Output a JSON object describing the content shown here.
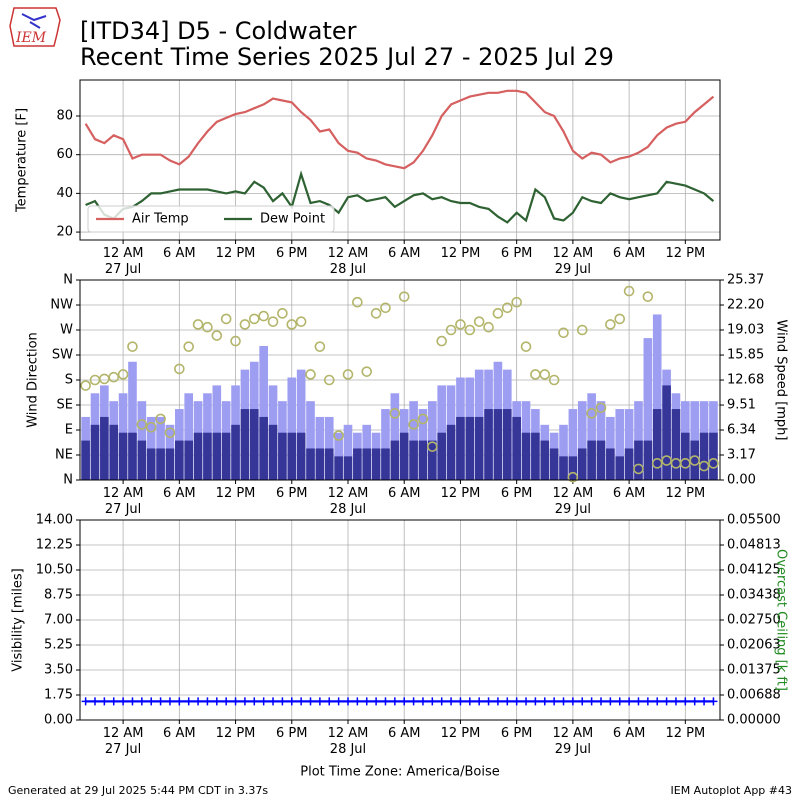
{
  "title": "[ITD34] D5 - Coldwater",
  "subtitle": "Recent Time Series 2025 Jul 27 - 2025 Jul 29",
  "logo_text": "IEM",
  "footer_left": "Generated at 29 Jul 2025 5:44 PM CDT in 3.37s",
  "footer_right": "IEM Autoplot App #43",
  "chart_data": [
    {
      "type": "line",
      "ylabel": "Temperature [F]",
      "grid": true,
      "legend": "lower left",
      "xlim": [
        "2025-07-26T19:24",
        "2025-07-29T15:42"
      ],
      "xticks": [
        {
          "value": "2025-07-27T00:00",
          "label": "12 AM\n27 Jul"
        },
        {
          "value": "2025-07-27T06:00",
          "label": "6 AM"
        },
        {
          "value": "2025-07-27T12:00",
          "label": "12 PM"
        },
        {
          "value": "2025-07-27T18:00",
          "label": "6 PM"
        },
        {
          "value": "2025-07-28T00:00",
          "label": "12 AM\n28 Jul"
        },
        {
          "value": "2025-07-28T06:00",
          "label": "6 AM"
        },
        {
          "value": "2025-07-28T12:00",
          "label": "12 PM"
        },
        {
          "value": "2025-07-28T18:00",
          "label": "6 PM"
        },
        {
          "value": "2025-07-29T00:00",
          "label": "12 AM\n29 Jul"
        },
        {
          "value": "2025-07-29T06:00",
          "label": "6 AM"
        },
        {
          "value": "2025-07-29T12:00",
          "label": "12 PM"
        }
      ],
      "ylim": [
        15.9,
        98.6
      ],
      "yticks": [
        20,
        40,
        60,
        80
      ],
      "x": [
        "2025-07-26T20:00",
        "2025-07-26T21:00",
        "2025-07-26T22:00",
        "2025-07-26T23:00",
        "2025-07-27T00:00",
        "2025-07-27T01:00",
        "2025-07-27T02:00",
        "2025-07-27T03:00",
        "2025-07-27T04:00",
        "2025-07-27T05:00",
        "2025-07-27T06:00",
        "2025-07-27T07:00",
        "2025-07-27T08:00",
        "2025-07-27T09:00",
        "2025-07-27T10:00",
        "2025-07-27T11:00",
        "2025-07-27T12:00",
        "2025-07-27T13:00",
        "2025-07-27T14:00",
        "2025-07-27T15:00",
        "2025-07-27T16:00",
        "2025-07-27T17:00",
        "2025-07-27T18:00",
        "2025-07-27T19:00",
        "2025-07-27T20:00",
        "2025-07-27T21:00",
        "2025-07-27T22:00",
        "2025-07-27T23:00",
        "2025-07-28T00:00",
        "2025-07-28T01:00",
        "2025-07-28T02:00",
        "2025-07-28T03:00",
        "2025-07-28T04:00",
        "2025-07-28T05:00",
        "2025-07-28T06:00",
        "2025-07-28T07:00",
        "2025-07-28T08:00",
        "2025-07-28T09:00",
        "2025-07-28T10:00",
        "2025-07-28T11:00",
        "2025-07-28T12:00",
        "2025-07-28T13:00",
        "2025-07-28T14:00",
        "2025-07-28T15:00",
        "2025-07-28T16:00",
        "2025-07-28T17:00",
        "2025-07-28T18:00",
        "2025-07-28T19:00",
        "2025-07-28T20:00",
        "2025-07-28T21:00",
        "2025-07-28T22:00",
        "2025-07-28T23:00",
        "2025-07-29T00:00",
        "2025-07-29T01:00",
        "2025-07-29T02:00",
        "2025-07-29T03:00",
        "2025-07-29T04:00",
        "2025-07-29T05:00",
        "2025-07-29T06:00",
        "2025-07-29T07:00",
        "2025-07-29T08:00",
        "2025-07-29T09:00",
        "2025-07-29T10:00",
        "2025-07-29T11:00",
        "2025-07-29T12:00",
        "2025-07-29T13:00",
        "2025-07-29T14:00",
        "2025-07-29T15:00"
      ],
      "series": [
        {
          "name": "Air Temp",
          "color": "#d65f5f",
          "values": [
            76,
            68,
            66,
            70,
            68,
            58,
            60,
            60,
            60,
            57,
            55,
            59,
            66,
            72,
            77,
            79,
            81,
            82,
            84,
            86,
            89,
            88,
            87,
            82,
            78,
            72,
            73,
            66,
            62,
            61,
            58,
            57,
            55,
            54,
            53,
            56,
            62,
            70,
            80,
            86,
            88,
            90,
            91,
            92,
            92,
            93,
            93,
            92,
            87,
            82,
            80,
            72,
            62,
            58,
            61,
            60,
            56,
            58,
            59,
            61,
            64,
            70,
            74,
            76,
            77,
            82,
            86,
            90
          ]
        },
        {
          "name": "Dew Point",
          "color": "#2e6232",
          "values": [
            34,
            36,
            29,
            27,
            32,
            33,
            36,
            40,
            40,
            41,
            42,
            42,
            42,
            42,
            41,
            40,
            41,
            40,
            46,
            43,
            36,
            40,
            33,
            50,
            35,
            36,
            34,
            30,
            38,
            39,
            36,
            37,
            38,
            33,
            36,
            39,
            40,
            37,
            38,
            36,
            35,
            35,
            33,
            32,
            28,
            25,
            30,
            26,
            42,
            38,
            27,
            26,
            30,
            38,
            36,
            35,
            40,
            38,
            37,
            38,
            39,
            40,
            46,
            45,
            44,
            42,
            40,
            36
          ]
        }
      ]
    },
    {
      "type": "wind",
      "ylabel": "Wind Direction",
      "y2label": "Wind Speed [mph]",
      "grid": true,
      "xlim": [
        "2025-07-26T19:24",
        "2025-07-29T15:42"
      ],
      "xticks": [
        {
          "value": "2025-07-27T00:00",
          "label": "12 AM\n27 Jul"
        },
        {
          "value": "2025-07-27T06:00",
          "label": "6 AM"
        },
        {
          "value": "2025-07-27T12:00",
          "label": "12 PM"
        },
        {
          "value": "2025-07-27T18:00",
          "label": "6 PM"
        },
        {
          "value": "2025-07-28T00:00",
          "label": "12 AM\n28 Jul"
        },
        {
          "value": "2025-07-28T06:00",
          "label": "6 AM"
        },
        {
          "value": "2025-07-28T12:00",
          "label": "12 PM"
        },
        {
          "value": "2025-07-28T18:00",
          "label": "6 PM"
        },
        {
          "value": "2025-07-29T00:00",
          "label": "12 AM\n29 Jul"
        },
        {
          "value": "2025-07-29T06:00",
          "label": "6 AM"
        },
        {
          "value": "2025-07-29T12:00",
          "label": "12 PM"
        }
      ],
      "ylim": [
        0,
        360
      ],
      "yticks": [
        {
          "value": 0,
          "label": "N"
        },
        {
          "value": 45,
          "label": "NE"
        },
        {
          "value": 90,
          "label": "E"
        },
        {
          "value": 135,
          "label": "SE"
        },
        {
          "value": 180,
          "label": "S"
        },
        {
          "value": 225,
          "label": "SW"
        },
        {
          "value": 270,
          "label": "W"
        },
        {
          "value": 315,
          "label": "NW"
        },
        {
          "value": 360,
          "label": "N"
        }
      ],
      "y2lim": [
        0,
        25.37
      ],
      "y2ticks": [
        {
          "value": 0,
          "label": "0.00"
        },
        3.17,
        6.34,
        9.51,
        12.68,
        15.85,
        19.03,
        {
          "value": 22.2,
          "label": "22.20"
        },
        25.37
      ],
      "x": [
        "2025-07-26T20:00",
        "2025-07-26T21:00",
        "2025-07-26T22:00",
        "2025-07-26T23:00",
        "2025-07-27T00:00",
        "2025-07-27T01:00",
        "2025-07-27T02:00",
        "2025-07-27T03:00",
        "2025-07-27T04:00",
        "2025-07-27T05:00",
        "2025-07-27T06:00",
        "2025-07-27T07:00",
        "2025-07-27T08:00",
        "2025-07-27T09:00",
        "2025-07-27T10:00",
        "2025-07-27T11:00",
        "2025-07-27T12:00",
        "2025-07-27T13:00",
        "2025-07-27T14:00",
        "2025-07-27T15:00",
        "2025-07-27T16:00",
        "2025-07-27T17:00",
        "2025-07-27T18:00",
        "2025-07-27T19:00",
        "2025-07-27T20:00",
        "2025-07-27T21:00",
        "2025-07-27T22:00",
        "2025-07-27T23:00",
        "2025-07-28T00:00",
        "2025-07-28T01:00",
        "2025-07-28T02:00",
        "2025-07-28T03:00",
        "2025-07-28T04:00",
        "2025-07-28T05:00",
        "2025-07-28T06:00",
        "2025-07-28T07:00",
        "2025-07-28T08:00",
        "2025-07-28T09:00",
        "2025-07-28T10:00",
        "2025-07-28T11:00",
        "2025-07-28T12:00",
        "2025-07-28T13:00",
        "2025-07-28T14:00",
        "2025-07-28T15:00",
        "2025-07-28T16:00",
        "2025-07-28T17:00",
        "2025-07-28T18:00",
        "2025-07-28T19:00",
        "2025-07-28T20:00",
        "2025-07-28T21:00",
        "2025-07-28T22:00",
        "2025-07-28T23:00",
        "2025-07-29T00:00",
        "2025-07-29T01:00",
        "2025-07-29T02:00",
        "2025-07-29T03:00",
        "2025-07-29T04:00",
        "2025-07-29T05:00",
        "2025-07-29T06:00",
        "2025-07-29T07:00",
        "2025-07-29T08:00",
        "2025-07-29T09:00",
        "2025-07-29T10:00",
        "2025-07-29T11:00",
        "2025-07-29T12:00",
        "2025-07-29T13:00",
        "2025-07-29T14:00",
        "2025-07-29T15:00"
      ],
      "series": [
        {
          "type": "bar",
          "axis": "y2",
          "color": "#9d9df2",
          "values": [
            8,
            11,
            12,
            10,
            11,
            15,
            10,
            8,
            8,
            7,
            9,
            11,
            10,
            11,
            12,
            10,
            12,
            14,
            15,
            17,
            12,
            10,
            13,
            14,
            10,
            8,
            8,
            6,
            7,
            6,
            7,
            6,
            9,
            11,
            9,
            10,
            9,
            10,
            12,
            12,
            13,
            13,
            14,
            14,
            15,
            14,
            10,
            10,
            9,
            7,
            6,
            7,
            9,
            10,
            11,
            10,
            8,
            9,
            9,
            10,
            18,
            21,
            14,
            11,
            10,
            10,
            10,
            10
          ]
        },
        {
          "type": "bar",
          "axis": "y2",
          "color": "#363699",
          "values": [
            5,
            7,
            8,
            7,
            6,
            6,
            5,
            4,
            4,
            4,
            5,
            5,
            6,
            6,
            6,
            6,
            7,
            9,
            9,
            8,
            7,
            6,
            6,
            6,
            4,
            4,
            4,
            3,
            3,
            4,
            4,
            4,
            4,
            5,
            6,
            5,
            5,
            5,
            6,
            7,
            8,
            8,
            8,
            9,
            9,
            9,
            8,
            6,
            6,
            5,
            4,
            3,
            3,
            4,
            5,
            5,
            4,
            3,
            4,
            5,
            5,
            9,
            12,
            9,
            6,
            5,
            6,
            6
          ]
        },
        {
          "type": "scatter",
          "color": "#b3b56a",
          "values": [
            170,
            180,
            182,
            185,
            190,
            240,
            100,
            95,
            110,
            85,
            200,
            240,
            280,
            275,
            260,
            290,
            250,
            280,
            290,
            295,
            285,
            300,
            280,
            285,
            190,
            240,
            180,
            80,
            190,
            320,
            195,
            300,
            310,
            120,
            330,
            100,
            110,
            60,
            250,
            270,
            280,
            270,
            285,
            275,
            300,
            310,
            320,
            240,
            190,
            190,
            180,
            265,
            5,
            270,
            120,
            130,
            280,
            290,
            340,
            20,
            330,
            30,
            35,
            30,
            30,
            35,
            25,
            30
          ]
        }
      ]
    },
    {
      "type": "line",
      "ylabel": "Visibility [miles]",
      "y2label": "Overcast Ceiling [k ft]",
      "y2color": "#228b22",
      "xlabel": "Plot Time Zone: America/Boise",
      "grid": true,
      "xlim": [
        "2025-07-26T19:24",
        "2025-07-29T15:42"
      ],
      "xticks": [
        {
          "value": "2025-07-27T00:00",
          "label": "12 AM\n27 Jul"
        },
        {
          "value": "2025-07-27T06:00",
          "label": "6 AM"
        },
        {
          "value": "2025-07-27T12:00",
          "label": "12 PM"
        },
        {
          "value": "2025-07-27T18:00",
          "label": "6 PM"
        },
        {
          "value": "2025-07-28T00:00",
          "label": "12 AM\n28 Jul"
        },
        {
          "value": "2025-07-28T06:00",
          "label": "6 AM"
        },
        {
          "value": "2025-07-28T12:00",
          "label": "12 PM"
        },
        {
          "value": "2025-07-28T18:00",
          "label": "6 PM"
        },
        {
          "value": "2025-07-29T00:00",
          "label": "12 AM\n29 Jul"
        },
        {
          "value": "2025-07-29T06:00",
          "label": "6 AM"
        },
        {
          "value": "2025-07-29T12:00",
          "label": "12 PM"
        }
      ],
      "ylim": [
        0,
        14
      ],
      "yticks": [
        {
          "value": 0,
          "label": "0.00"
        },
        1.75,
        {
          "value": 3.5,
          "label": "3.50"
        },
        5.25,
        {
          "value": 7,
          "label": "7.00"
        },
        8.75,
        {
          "value": 10.5,
          "label": "10.50"
        },
        12.25,
        {
          "value": 14,
          "label": "14.00"
        }
      ],
      "y2lim": [
        0,
        0.055
      ],
      "y2ticks": [
        {
          "value": 0,
          "label": "0.00000"
        },
        {
          "value": 0.006875,
          "label": "0.00688"
        },
        0.01375,
        {
          "value": 0.020625,
          "label": "0.02063"
        },
        {
          "value": 0.0275,
          "label": "0.02750"
        },
        {
          "value": 0.034375,
          "label": "0.03438"
        },
        0.04125,
        {
          "value": 0.048125,
          "label": "0.04813"
        },
        {
          "value": 0.055,
          "label": "0.05500"
        }
      ],
      "x": [
        "2025-07-26T20:00",
        "2025-07-26T21:00",
        "2025-07-26T22:00",
        "2025-07-26T23:00",
        "2025-07-27T00:00",
        "2025-07-27T01:00",
        "2025-07-27T02:00",
        "2025-07-27T03:00",
        "2025-07-27T04:00",
        "2025-07-27T05:00",
        "2025-07-27T06:00",
        "2025-07-27T07:00",
        "2025-07-27T08:00",
        "2025-07-27T09:00",
        "2025-07-27T10:00",
        "2025-07-27T11:00",
        "2025-07-27T12:00",
        "2025-07-27T13:00",
        "2025-07-27T14:00",
        "2025-07-27T15:00",
        "2025-07-27T16:00",
        "2025-07-27T17:00",
        "2025-07-27T18:00",
        "2025-07-27T19:00",
        "2025-07-27T20:00",
        "2025-07-27T21:00",
        "2025-07-27T22:00",
        "2025-07-27T23:00",
        "2025-07-28T00:00",
        "2025-07-28T01:00",
        "2025-07-28T02:00",
        "2025-07-28T03:00",
        "2025-07-28T04:00",
        "2025-07-28T05:00",
        "2025-07-28T06:00",
        "2025-07-28T07:00",
        "2025-07-28T08:00",
        "2025-07-28T09:00",
        "2025-07-28T10:00",
        "2025-07-28T11:00",
        "2025-07-28T12:00",
        "2025-07-28T13:00",
        "2025-07-28T14:00",
        "2025-07-28T15:00",
        "2025-07-28T16:00",
        "2025-07-28T17:00",
        "2025-07-28T18:00",
        "2025-07-28T19:00",
        "2025-07-28T20:00",
        "2025-07-28T21:00",
        "2025-07-28T22:00",
        "2025-07-28T23:00",
        "2025-07-29T00:00",
        "2025-07-29T01:00",
        "2025-07-29T02:00",
        "2025-07-29T03:00",
        "2025-07-29T04:00",
        "2025-07-29T05:00",
        "2025-07-29T06:00",
        "2025-07-29T07:00",
        "2025-07-29T08:00",
        "2025-07-29T09:00",
        "2025-07-29T10:00",
        "2025-07-29T11:00",
        "2025-07-29T12:00",
        "2025-07-29T13:00",
        "2025-07-29T14:00",
        "2025-07-29T15:00"
      ],
      "series": [
        {
          "color": "#0000ff",
          "marker": "+",
          "values": [
            1.3,
            1.3,
            1.3,
            1.3,
            1.3,
            1.3,
            1.3,
            1.3,
            1.3,
            1.3,
            1.3,
            1.3,
            1.3,
            1.3,
            1.3,
            1.3,
            1.3,
            1.3,
            1.3,
            1.3,
            1.3,
            1.3,
            1.3,
            1.3,
            1.3,
            1.3,
            1.3,
            1.3,
            1.3,
            1.3,
            1.3,
            1.3,
            1.3,
            1.3,
            1.3,
            1.3,
            1.3,
            1.3,
            1.3,
            1.3,
            1.3,
            1.3,
            1.3,
            1.3,
            1.3,
            1.3,
            1.3,
            1.3,
            1.3,
            1.3,
            1.3,
            1.3,
            1.3,
            1.3,
            1.3,
            1.3,
            1.3,
            1.3,
            1.3,
            1.3,
            1.3,
            1.3,
            1.3,
            1.3,
            1.3,
            1.3,
            1.3,
            1.3
          ]
        }
      ]
    }
  ]
}
